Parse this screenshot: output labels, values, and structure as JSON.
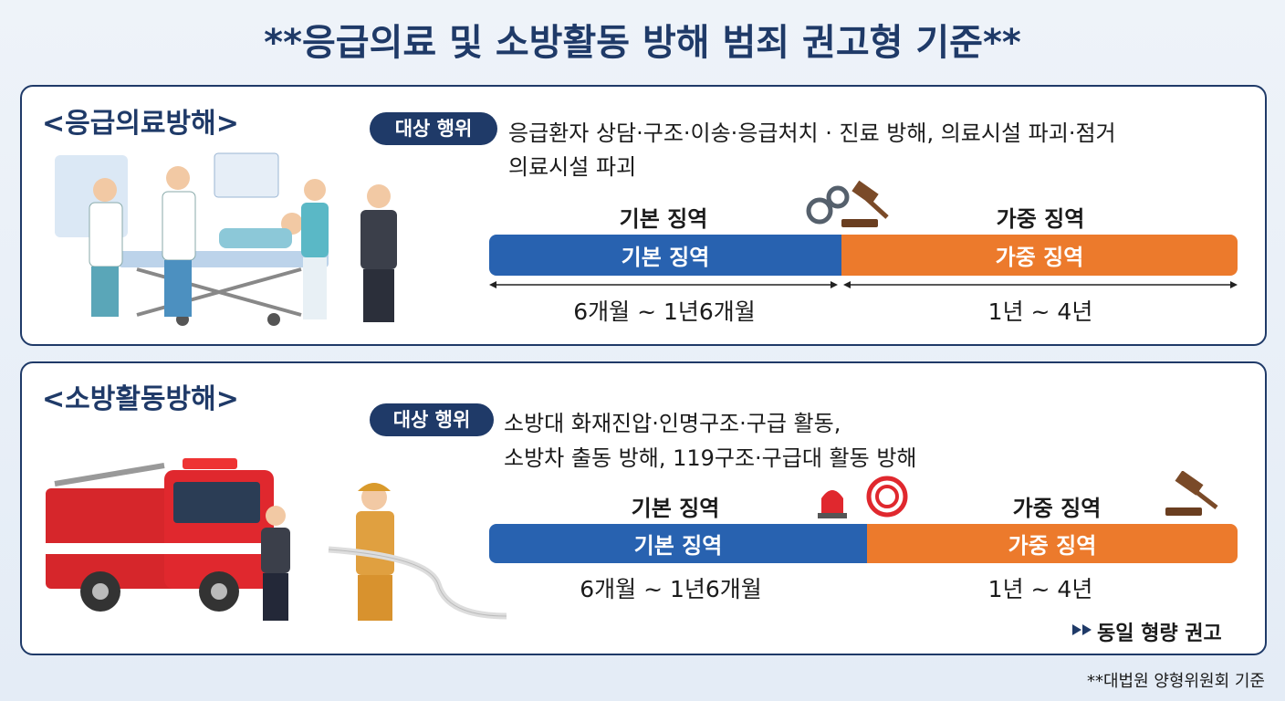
{
  "title": "**응급의료 및 소방활동 방해 범죄 권고형 기준**",
  "sections": [
    {
      "heading": "<응급의료방해>",
      "target_badge": "대상 행위",
      "target_lines": [
        "응급환자 상담·구조·이송·응급처치 · 진료 방해, 의료시설 파괴·점거",
        "의료시설 파괴"
      ],
      "basic_label": "기본 징역",
      "basic_bar": "기본 징역",
      "basic_range": "6개월 ~ 1년6개월",
      "aggravated_label": "가중 징역",
      "aggravated_bar": "가중 징역",
      "aggravated_range": "1년 ~ 4년"
    },
    {
      "heading": "<소방활동방해>",
      "target_badge": "대상 행위",
      "target_lines": [
        "소방대 화재진압·인명구조·구급 활동,",
        "소방차 출동 방해, 119구조·구급대 활동 방해"
      ],
      "basic_label": "기본 징역",
      "basic_bar": "기본 징역",
      "basic_range": "6개월 ~ 1년6개월",
      "aggravated_label": "가중 징역",
      "aggravated_bar": "가중 징역",
      "aggravated_range": "1년 ~ 4년",
      "note": "동일 형량 권고"
    }
  ],
  "footnote": "**대법원 양형위원회 기준"
}
